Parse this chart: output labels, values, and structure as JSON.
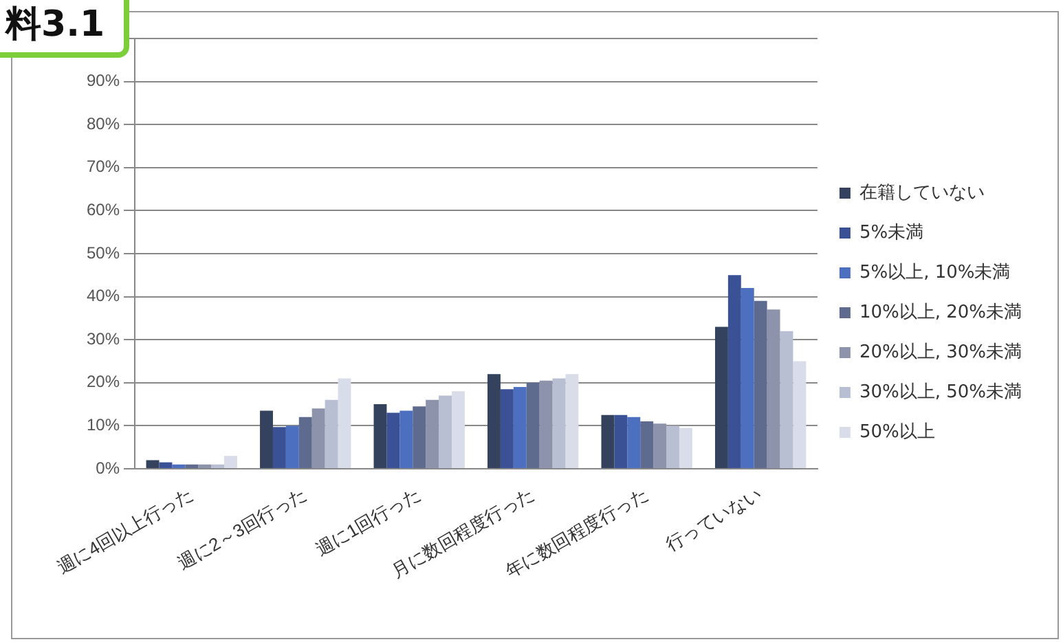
{
  "chart_data": {
    "type": "bar",
    "title": "料3.1",
    "categories": [
      "週に4回以上行った",
      "週に2～3回行った",
      "週に1回行った",
      "月に数回程度行った",
      "年に数回程度行った",
      "行っていない"
    ],
    "series": [
      {
        "name": "在籍していない",
        "color": "#34425e",
        "values": [
          2,
          13.5,
          15,
          22,
          12.5,
          33
        ]
      },
      {
        "name": "5%未満",
        "color": "#3b5196",
        "values": [
          1.5,
          9.7,
          13,
          18.5,
          12.5,
          45
        ]
      },
      {
        "name": "5%以上, 10%未満",
        "color": "#4c6fbf",
        "values": [
          1,
          10,
          13.5,
          19,
          12,
          42
        ]
      },
      {
        "name": "10%以上, 20%未満",
        "color": "#5e6a8e",
        "values": [
          1,
          12,
          14.5,
          20,
          11,
          39
        ]
      },
      {
        "name": "20%以上, 30%未満",
        "color": "#8d93ab",
        "values": [
          1,
          14,
          16,
          20.5,
          10.5,
          37
        ]
      },
      {
        "name": "30%以上, 50%未満",
        "color": "#b9bfd2",
        "values": [
          1,
          16,
          17,
          21,
          10,
          32
        ]
      },
      {
        "name": "50%以上",
        "color": "#d9dde9",
        "values": [
          3,
          21,
          18,
          22,
          9.5,
          25
        ]
      }
    ],
    "ylim": [
      0,
      100
    ],
    "yticks": [
      {
        "value": 0,
        "label": "0%"
      },
      {
        "value": 10,
        "label": "10%"
      },
      {
        "value": 20,
        "label": "20%"
      },
      {
        "value": 30,
        "label": "30%"
      },
      {
        "value": 40,
        "label": "40%"
      },
      {
        "value": 50,
        "label": "50%"
      },
      {
        "value": 60,
        "label": "60%"
      },
      {
        "value": 70,
        "label": "70%"
      },
      {
        "value": 80,
        "label": "80%"
      },
      {
        "value": 90,
        "label": "90%"
      },
      {
        "value": 100,
        "label": null
      }
    ],
    "grid": "y",
    "legend": "right"
  }
}
